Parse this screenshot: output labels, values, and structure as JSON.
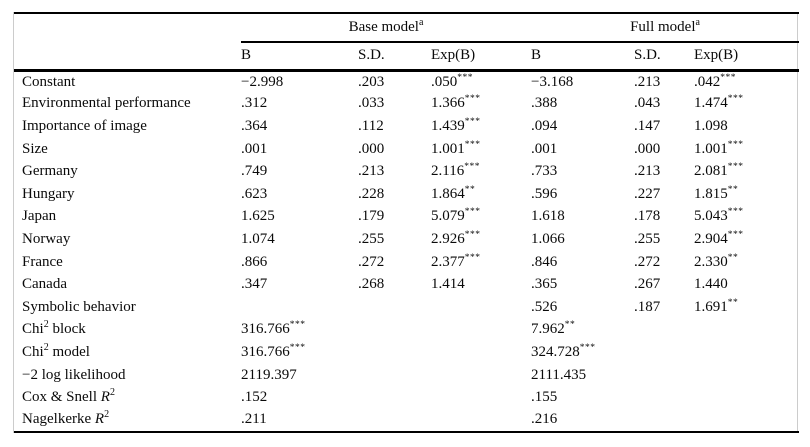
{
  "table": {
    "groups": [
      {
        "label": "Base model",
        "sup": "a"
      },
      {
        "label": "Full model",
        "sup": "a"
      }
    ],
    "columns": [
      "B",
      "S.D.",
      "Exp(B)",
      "B",
      "S.D.",
      "Exp(B)"
    ],
    "rows": [
      {
        "label": [
          {
            "t": "Constant"
          }
        ],
        "cells": [
          {
            "v": "−2.998"
          },
          {
            "v": ".203"
          },
          {
            "v": ".050",
            "sig": "***"
          },
          {
            "v": "−3.168"
          },
          {
            "v": ".213"
          },
          {
            "v": ".042",
            "sig": "***"
          }
        ]
      },
      {
        "label": [
          {
            "t": "Environmental performance"
          }
        ],
        "cells": [
          {
            "v": ".312"
          },
          {
            "v": ".033"
          },
          {
            "v": "1.366",
            "sig": "***"
          },
          {
            "v": ".388"
          },
          {
            "v": ".043"
          },
          {
            "v": "1.474",
            "sig": "***"
          }
        ]
      },
      {
        "label": [
          {
            "t": "Importance of image"
          }
        ],
        "cells": [
          {
            "v": ".364"
          },
          {
            "v": ".112"
          },
          {
            "v": "1.439",
            "sig": "***"
          },
          {
            "v": ".094"
          },
          {
            "v": ".147"
          },
          {
            "v": "1.098"
          }
        ]
      },
      {
        "label": [
          {
            "t": "Size"
          }
        ],
        "cells": [
          {
            "v": ".001"
          },
          {
            "v": ".000"
          },
          {
            "v": "1.001",
            "sig": "***"
          },
          {
            "v": ".001"
          },
          {
            "v": ".000"
          },
          {
            "v": "1.001",
            "sig": "***"
          }
        ]
      },
      {
        "label": [
          {
            "t": "Germany"
          }
        ],
        "cells": [
          {
            "v": ".749"
          },
          {
            "v": ".213"
          },
          {
            "v": "2.116",
            "sig": "***"
          },
          {
            "v": ".733"
          },
          {
            "v": ".213"
          },
          {
            "v": "2.081",
            "sig": "***"
          }
        ]
      },
      {
        "label": [
          {
            "t": "Hungary"
          }
        ],
        "cells": [
          {
            "v": ".623"
          },
          {
            "v": ".228"
          },
          {
            "v": "1.864",
            "sig": "**"
          },
          {
            "v": ".596"
          },
          {
            "v": ".227"
          },
          {
            "v": "1.815",
            "sig": "**"
          }
        ]
      },
      {
        "label": [
          {
            "t": "Japan"
          }
        ],
        "cells": [
          {
            "v": "1.625"
          },
          {
            "v": ".179"
          },
          {
            "v": "5.079",
            "sig": "***"
          },
          {
            "v": "1.618"
          },
          {
            "v": ".178"
          },
          {
            "v": "5.043",
            "sig": "***"
          }
        ]
      },
      {
        "label": [
          {
            "t": "Norway"
          }
        ],
        "cells": [
          {
            "v": "1.074"
          },
          {
            "v": ".255"
          },
          {
            "v": "2.926",
            "sig": "***"
          },
          {
            "v": "1.066"
          },
          {
            "v": ".255"
          },
          {
            "v": "2.904",
            "sig": "***"
          }
        ]
      },
      {
        "label": [
          {
            "t": "France"
          }
        ],
        "cells": [
          {
            "v": ".866"
          },
          {
            "v": ".272"
          },
          {
            "v": "2.377",
            "sig": "***"
          },
          {
            "v": ".846"
          },
          {
            "v": ".272"
          },
          {
            "v": "2.330",
            "sig": "**"
          }
        ]
      },
      {
        "label": [
          {
            "t": "Canada"
          }
        ],
        "cells": [
          {
            "v": ".347"
          },
          {
            "v": ".268"
          },
          {
            "v": "1.414"
          },
          {
            "v": ".365"
          },
          {
            "v": ".267"
          },
          {
            "v": "1.440"
          }
        ]
      },
      {
        "label": [
          {
            "t": "Symbolic behavior"
          }
        ],
        "cells": [
          {},
          {},
          {},
          {
            "v": ".526"
          },
          {
            "v": ".187"
          },
          {
            "v": "1.691",
            "sig": "**"
          }
        ]
      },
      {
        "label": [
          {
            "t": "Chi"
          },
          {
            "t": "2",
            "sup": true
          },
          {
            "t": " block"
          }
        ],
        "cells": [
          {
            "v": "316.766",
            "sig": "***"
          },
          {},
          {},
          {
            "v": "7.962",
            "sig": "**"
          },
          {},
          {}
        ]
      },
      {
        "label": [
          {
            "t": "Chi"
          },
          {
            "t": "2",
            "sup": true
          },
          {
            "t": " model"
          }
        ],
        "cells": [
          {
            "v": "316.766",
            "sig": "***"
          },
          {},
          {},
          {
            "v": "324.728",
            "sig": "***"
          },
          {},
          {}
        ]
      },
      {
        "label": [
          {
            "t": "−2 log likelihood"
          }
        ],
        "cells": [
          {
            "v": "2119.397"
          },
          {},
          {},
          {
            "v": "2111.435"
          },
          {},
          {}
        ]
      },
      {
        "label": [
          {
            "t": "Cox & Snell "
          },
          {
            "t": "R",
            "italic": true
          },
          {
            "t": "2",
            "sup": true
          }
        ],
        "cells": [
          {
            "v": ".152"
          },
          {},
          {},
          {
            "v": ".155"
          },
          {},
          {}
        ]
      },
      {
        "label": [
          {
            "t": "Nagelkerke "
          },
          {
            "t": "R",
            "italic": true
          },
          {
            "t": "2",
            "sup": true
          }
        ],
        "cells": [
          {
            "v": ".211"
          },
          {},
          {},
          {
            "v": ".216"
          },
          {},
          {}
        ]
      }
    ]
  }
}
